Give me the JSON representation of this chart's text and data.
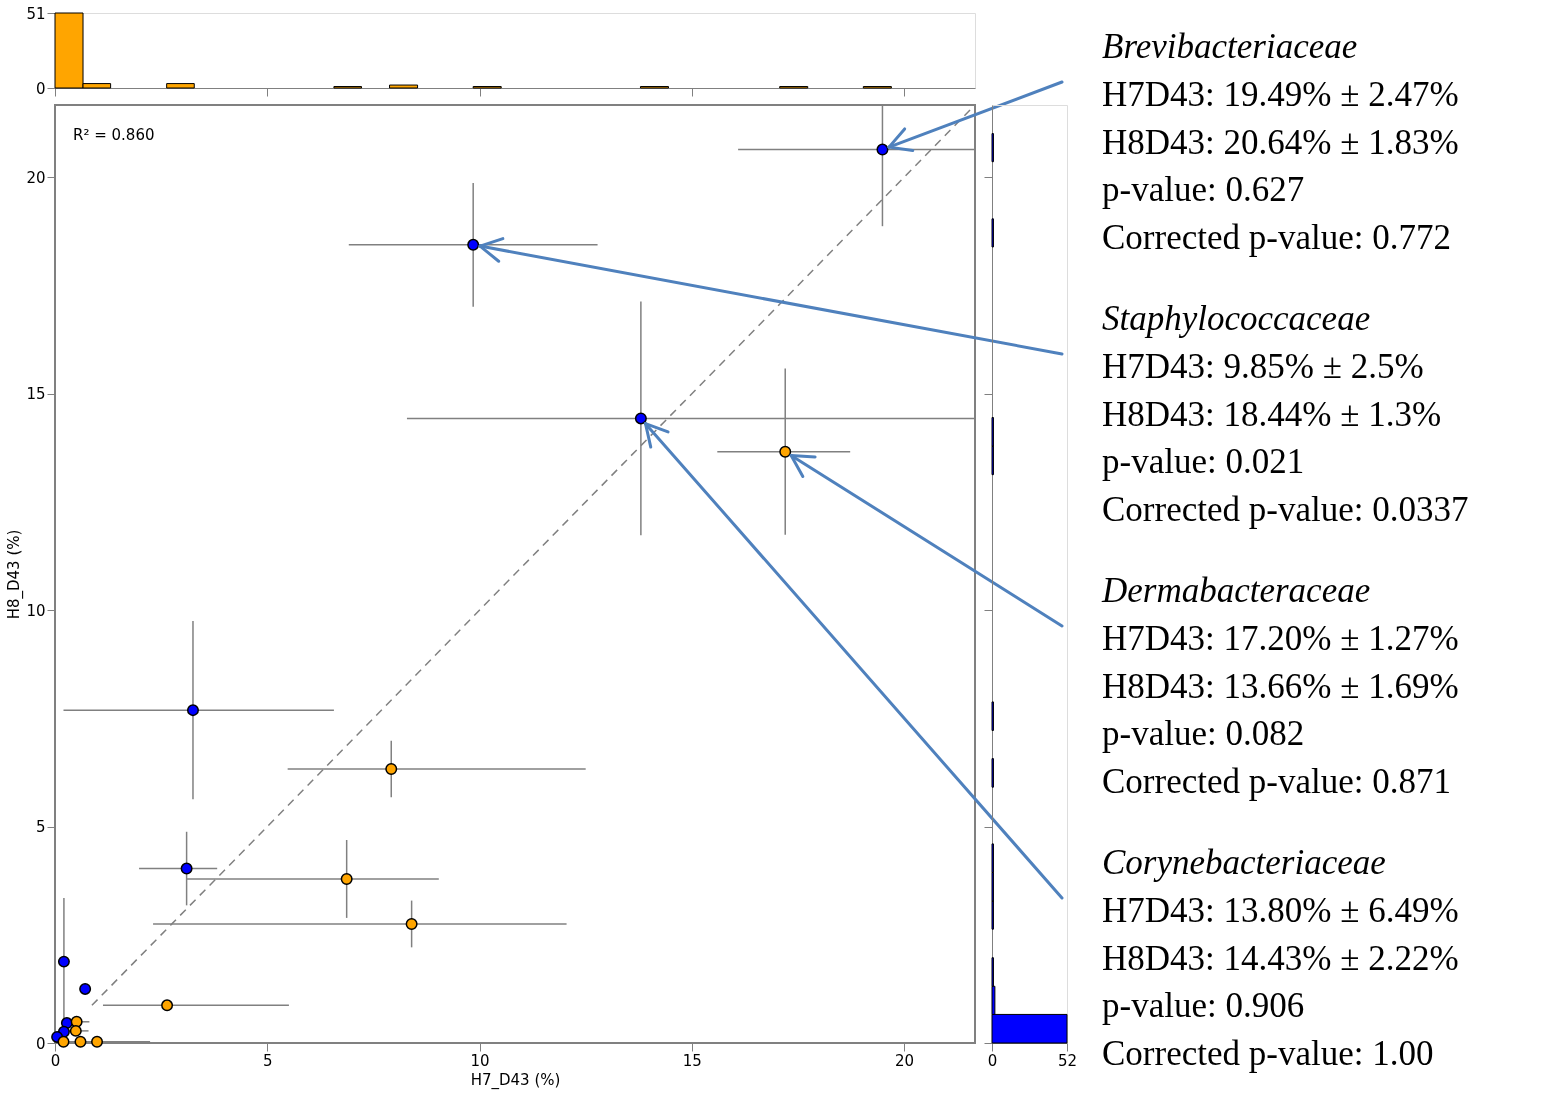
{
  "chart_data": [
    {
      "type": "histogram",
      "bins": [
        0,
        0.66,
        1.31,
        1.97,
        2.63,
        3.28,
        3.94,
        4.6,
        5.25,
        5.91,
        6.57,
        7.22,
        7.88,
        8.54,
        9.19,
        9.85,
        10.51,
        11.16,
        11.82,
        12.48,
        13.13,
        13.79,
        14.45,
        15.1,
        15.76,
        16.42,
        17.07,
        17.73,
        18.39,
        19.04,
        19.7,
        20.36,
        21.01,
        21.67
      ],
      "xlim": [
        0,
        21.67
      ],
      "xticks": [
        0,
        5,
        10,
        15,
        20
      ],
      "ylim": [
        0,
        51
      ],
      "yticks": [
        0,
        51
      ],
      "tick_labels": "y",
      "series": [
        {
          "color": "#ffa500",
          "values": [
            51,
            3,
            0,
            0,
            3,
            0,
            0,
            0,
            0,
            0,
            1,
            0,
            2,
            0,
            0,
            1,
            0,
            0,
            0,
            0,
            0,
            1,
            0,
            0,
            0,
            0,
            1,
            0,
            0,
            1,
            0,
            0,
            0
          ]
        }
      ]
    },
    {
      "type": "scatter",
      "xlabel": "H7_D43 (%)",
      "ylabel": "H8_D43 (%)",
      "xlim": [
        0,
        21.67
      ],
      "ylim": [
        0,
        21.67
      ],
      "xticks": [
        0,
        5,
        10,
        15,
        20
      ],
      "yticks": [
        0,
        5,
        10,
        15,
        20
      ],
      "series": [
        {
          "marker": "circle",
          "color": "#0000ff",
          "x": [
            19.49,
            9.85,
            13.8,
            3.25,
            3.1,
            0.21,
            0.71,
            0.28,
            0.21,
            0.05
          ],
          "values": [
            20.64,
            18.44,
            14.43,
            7.69,
            4.03,
            1.88,
            1.25,
            0.46,
            0.26,
            0.14
          ],
          "xerrors": [
            [
              16.09,
              21.67
            ],
            2.93,
            [
              8.29,
              21.67
            ],
            [
              0.2,
              6.57
            ],
            [
              1.98,
              3.82
            ],
            null,
            0.1,
            null,
            null,
            null
          ],
          "errors": [
            [
              18.87,
              21.67
            ],
            1.43,
            2.7,
            2.06,
            0.85,
            [
              0,
              3.35
            ],
            0.1,
            null,
            null,
            null
          ]
        },
        {
          "marker": "circle",
          "color": "#ffa500",
          "x": [
            17.2,
            7.92,
            6.87,
            8.4,
            2.64,
            0.51,
            0.49,
            0.99,
            0.6,
            0.2
          ],
          "values": [
            13.66,
            6.33,
            3.79,
            2.75,
            0.87,
            0.49,
            0.28,
            0.03,
            0.03,
            0.03
          ],
          "xerrors": [
            [
              15.6,
              18.73
            ],
            [
              5.48,
              12.5
            ],
            [
              3.11,
              9.04
            ],
            [
              2.31,
              12.05
            ],
            [
              1.13,
              5.51
            ],
            0.3,
            0.3,
            [
              0,
              2.24
            ],
            null,
            null
          ],
          "errors": [
            1.92,
            0.65,
            0.9,
            0.54,
            null,
            null,
            null,
            null,
            null,
            null
          ]
        },
        {
          "type": "line",
          "color": "#808080",
          "line_style": "dashed",
          "x": [
            0.87,
            21.67
          ],
          "values": [
            0.87,
            21.67
          ]
        }
      ],
      "annotations": [
        "R² = 0.860",
        {
          "text": "Brevibacteriaceae",
          "x": 19.49,
          "y": 20.64
        },
        "H7D43: 19.49% ± 2.47%",
        "H8D43: 20.64% ± 1.83%",
        "p-value: 0.627",
        "Corrected p-value: 0.772",
        {
          "text": "Staphylococcaceae",
          "x": 9.85,
          "y": 18.44
        },
        "H7D43: 9.85% ± 2.5%",
        "H8D43: 18.44% ± 1.3%",
        "p-value: 0.021",
        "Corrected p-value: 0.0337",
        {
          "text": "Dermabacteraceae",
          "x": 17.2,
          "y": 13.66
        },
        "H7D43: 17.20% ± 1.27%",
        "H8D43: 13.66% ± 1.69%",
        "p-value: 0.082",
        "Corrected p-value: 0.871",
        {
          "text": "Corynebacteriaceae",
          "x": 13.8,
          "y": 14.43
        },
        "H7D43: 13.80% ± 6.49%",
        "H8D43: 14.43% ± 2.22%",
        "p-value: 0.906",
        "Corrected p-value: 1.00"
      ]
    },
    {
      "type": "histogram",
      "orientation": "horizontal",
      "bins": [
        0,
        0.66,
        1.31,
        1.97,
        2.63,
        3.28,
        3.94,
        4.6,
        5.25,
        5.91,
        6.57,
        7.22,
        7.88,
        8.54,
        9.19,
        9.85,
        10.51,
        11.16,
        11.82,
        12.48,
        13.13,
        13.79,
        14.45,
        15.1,
        15.76,
        16.42,
        17.07,
        17.73,
        18.39,
        19.04,
        19.7,
        20.36,
        21.01,
        21.67
      ],
      "xlim": [
        0,
        52
      ],
      "xticks": [
        0,
        52
      ],
      "ylim": [
        0,
        21.67
      ],
      "yticks": [
        0,
        5,
        10,
        15,
        20
      ],
      "tick_labels": "x",
      "series": [
        {
          "color": "#0000ff",
          "values": [
            52,
            2,
            1,
            0,
            1,
            1,
            1,
            0,
            0,
            1,
            0,
            1,
            0,
            0,
            0,
            0,
            0,
            0,
            0,
            0,
            1,
            1,
            0,
            0,
            0,
            0,
            0,
            0,
            1,
            0,
            0,
            1,
            0
          ]
        }
      ]
    }
  ]
}
